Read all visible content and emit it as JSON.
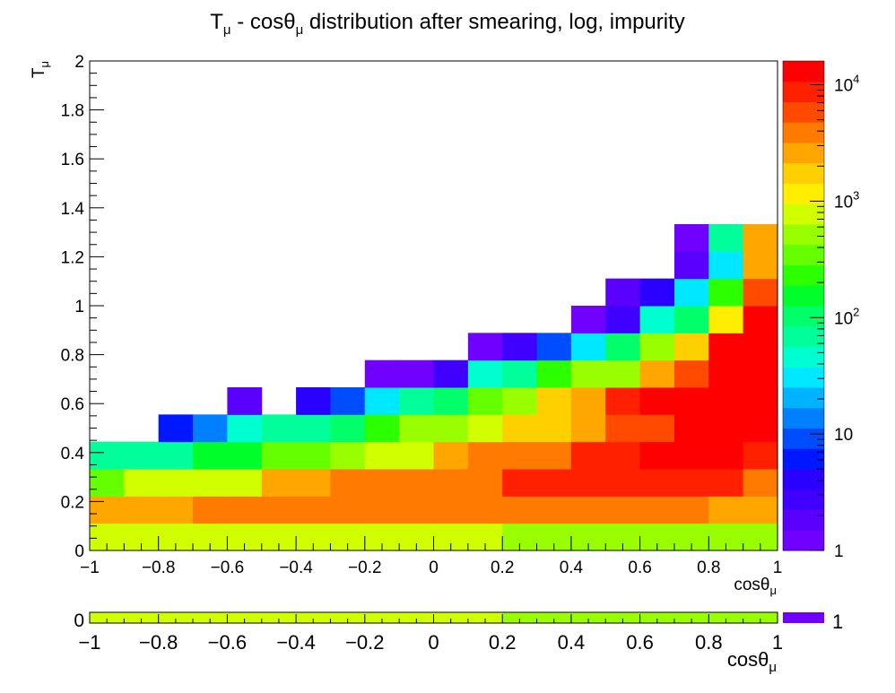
{
  "chart_data": [
    {
      "type": "heatmap",
      "title_main": "T",
      "title_main_sub": "μ",
      "title_mid": " - cosθ",
      "title_mid_sub": "μ",
      "title_rest": " distribution after smearing, log, impurity",
      "xlabel": "cosθ",
      "xlabel_sub": "μ",
      "ylabel": "T",
      "ylabel_sub": "μ",
      "xlim": [
        -1,
        1
      ],
      "ylim": [
        0,
        2
      ],
      "x_ticks": [
        "−1",
        "−0.8",
        "−0.6",
        "−0.4",
        "−0.2",
        "0",
        "0.2",
        "0.4",
        "0.6",
        "0.8",
        "1"
      ],
      "y_ticks": [
        "0",
        "0.2",
        "0.4",
        "0.6",
        "0.8",
        "1",
        "1.2",
        "1.4",
        "1.6",
        "1.8",
        "2"
      ],
      "x_bins": 20,
      "y_bins": 18,
      "z_scale": "log",
      "z_range": [
        1,
        16000
      ],
      "z_ticks": [
        {
          "mantissa": "1",
          "exponent": "",
          "value": 1
        },
        {
          "mantissa": "10",
          "exponent": "",
          "value": 10
        },
        {
          "mantissa": "10",
          "exponent": "2",
          "value": 100
        },
        {
          "mantissa": "10",
          "exponent": "3",
          "value": 1000
        },
        {
          "mantissa": "10",
          "exponent": "4",
          "value": 10000
        }
      ],
      "grid": false,
      "palette": [
        "#7000ff",
        "#5900ff",
        "#4000ff",
        "#2a00ff",
        "#0018ff",
        "#004cff",
        "#0080ff",
        "#00b3ff",
        "#00e8ff",
        "#00ffd0",
        "#00ff9a",
        "#00ff68",
        "#00ff2a",
        "#2cff00",
        "#66ff00",
        "#99ff00",
        "#d2ff00",
        "#ffee00",
        "#ffd000",
        "#ffa600",
        "#ff7a00",
        "#ff4a00",
        "#ff2000",
        "#ff0000"
      ],
      "z_note_matrix_rows": "each row lists the 20 x-bins from cosθ=-1 to 1; rows go from T=0 upward; null = empty bin",
      "z_matrix": [
        [
          900,
          900,
          900,
          900,
          900,
          900,
          900,
          900,
          900,
          900,
          900,
          900,
          600,
          600,
          600,
          600,
          600,
          600,
          600,
          600
        ],
        [
          2500,
          2500,
          2500,
          4000,
          4000,
          4000,
          4000,
          4000,
          4000,
          4000,
          4000,
          4000,
          4000,
          4000,
          4000,
          4000,
          4000,
          4000,
          2500,
          2500
        ],
        [
          400,
          700,
          700,
          900,
          900,
          2500,
          2500,
          4000,
          4000,
          4000,
          4000,
          4000,
          9000,
          9000,
          9000,
          9000,
          9000,
          9000,
          9000,
          4000
        ],
        [
          60,
          60,
          60,
          140,
          140,
          300,
          300,
          600,
          900,
          900,
          2500,
          4000,
          4000,
          4000,
          9000,
          9000,
          14000,
          14000,
          14000,
          9000
        ],
        [
          null,
          null,
          6,
          16,
          40,
          80,
          60,
          120,
          200,
          500,
          600,
          800,
          1500,
          1500,
          3000,
          5000,
          5000,
          12000,
          12000,
          14000
        ],
        [
          null,
          null,
          null,
          null,
          2,
          null,
          4,
          8,
          30,
          60,
          90,
          300,
          600,
          1500,
          3000,
          8000,
          12000,
          16000,
          16000,
          16000
        ],
        [
          null,
          null,
          null,
          null,
          null,
          null,
          null,
          null,
          1,
          1,
          3,
          40,
          80,
          200,
          450,
          600,
          2200,
          6000,
          15000,
          16000
        ],
        [
          null,
          null,
          null,
          null,
          null,
          null,
          null,
          null,
          null,
          null,
          null,
          1,
          3,
          8,
          35,
          110,
          500,
          2000,
          12000,
          16000
        ],
        [
          null,
          null,
          null,
          null,
          null,
          null,
          null,
          null,
          null,
          null,
          null,
          null,
          null,
          null,
          1,
          3,
          40,
          100,
          1200,
          16000
        ],
        [
          null,
          null,
          null,
          null,
          null,
          null,
          null,
          null,
          null,
          null,
          null,
          null,
          null,
          null,
          null,
          2,
          4,
          30,
          190,
          5000
        ],
        [
          null,
          null,
          null,
          null,
          null,
          null,
          null,
          null,
          null,
          null,
          null,
          null,
          null,
          null,
          null,
          null,
          null,
          2,
          35,
          2500
        ],
        [
          null,
          null,
          null,
          null,
          null,
          null,
          null,
          null,
          null,
          null,
          null,
          null,
          null,
          null,
          null,
          null,
          null,
          1,
          80,
          2500
        ],
        [
          null,
          null,
          null,
          null,
          null,
          null,
          null,
          null,
          null,
          null,
          null,
          null,
          null,
          null,
          null,
          null,
          null,
          null,
          null,
          null
        ],
        [
          null,
          null,
          null,
          null,
          null,
          null,
          null,
          null,
          null,
          null,
          null,
          null,
          null,
          null,
          null,
          null,
          null,
          null,
          null,
          null
        ],
        [
          null,
          null,
          null,
          null,
          null,
          null,
          null,
          null,
          null,
          null,
          null,
          null,
          null,
          null,
          null,
          null,
          null,
          null,
          null,
          null
        ],
        [
          null,
          null,
          null,
          null,
          null,
          null,
          null,
          null,
          null,
          null,
          null,
          null,
          null,
          null,
          null,
          null,
          null,
          null,
          null,
          null
        ],
        [
          null,
          null,
          null,
          null,
          null,
          null,
          null,
          null,
          null,
          null,
          null,
          null,
          null,
          null,
          null,
          null,
          null,
          null,
          null,
          null
        ],
        [
          null,
          null,
          null,
          null,
          null,
          null,
          null,
          null,
          null,
          null,
          null,
          null,
          null,
          null,
          null,
          null,
          null,
          null,
          null,
          null
        ]
      ]
    },
    {
      "type": "heatmap",
      "xlabel": "cosθ",
      "xlabel_sub": "μ",
      "xlim": [
        -1,
        1
      ],
      "x_ticks": [
        "−1",
        "−0.8",
        "−0.6",
        "−0.4",
        "−0.2",
        "0",
        "0.2",
        "0.4",
        "0.6",
        "0.8",
        "1"
      ],
      "y_ticks": [
        "0"
      ],
      "z_ticks": [
        {
          "mantissa": "1",
          "exponent": "",
          "value": 1
        }
      ],
      "x_bins": 20,
      "z_values": [
        900,
        900,
        900,
        900,
        900,
        900,
        900,
        900,
        900,
        900,
        900,
        900,
        600,
        600,
        600,
        600,
        600,
        600,
        600,
        600
      ],
      "palette_bottom": "#7000ff"
    }
  ]
}
